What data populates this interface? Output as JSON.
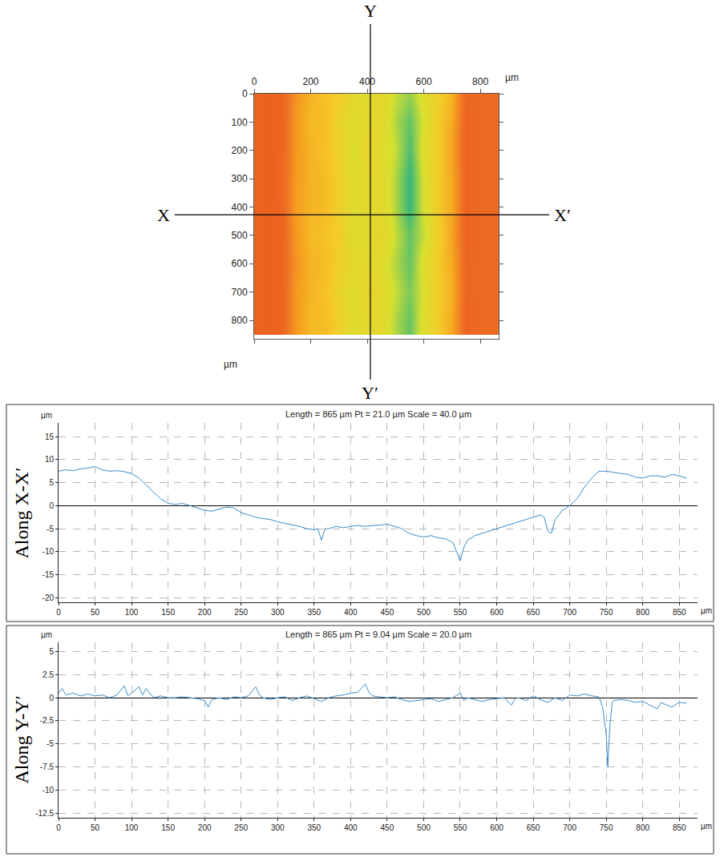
{
  "chart_data": [
    {
      "type": "heatmap",
      "xlabel": "µm",
      "ylabel": "µm",
      "x": [
        0,
        50,
        100,
        150,
        200,
        250,
        300,
        350,
        400,
        450,
        500,
        550,
        600,
        650,
        700,
        750,
        800,
        850
      ],
      "y": [
        0,
        100,
        200,
        300,
        400,
        500,
        600,
        700,
        800
      ],
      "z": [
        [
          7.5,
          8,
          7,
          1.5,
          -1,
          -2,
          -3,
          -4.5,
          -5,
          -4,
          -6,
          -7,
          -5,
          -3.5,
          -1,
          7,
          6.5,
          6.5
        ],
        [
          7.5,
          8,
          7,
          1,
          -1.5,
          -1.5,
          -4,
          -5,
          -4.5,
          -4.5,
          -6.5,
          -8,
          -5.5,
          -3,
          0,
          7.5,
          6.5,
          6.5
        ],
        [
          7.5,
          8,
          7,
          1,
          -1,
          -2,
          -3.5,
          -5.5,
          -4,
          -5,
          -6,
          -8.5,
          -5,
          -3,
          0.5,
          7.5,
          6.5,
          6.5
        ],
        [
          7.5,
          8,
          6.5,
          1,
          -1,
          -1.5,
          -3.5,
          -5,
          -4.5,
          -4.5,
          -6.5,
          -9,
          -5.5,
          -3,
          0,
          7.5,
          6.5,
          6.5
        ],
        [
          7.5,
          8,
          7,
          0.5,
          -1,
          -1.5,
          -3.5,
          -5,
          -4.5,
          -4.5,
          -6.5,
          -9,
          -5.5,
          -3,
          0,
          7.5,
          6.5,
          6.5
        ],
        [
          7.5,
          8,
          7,
          1,
          -1.5,
          -2,
          -3,
          -5,
          -5,
          -4,
          -6,
          -8,
          -6,
          -3.5,
          0.5,
          7.5,
          6.5,
          6.5
        ],
        [
          7.5,
          8,
          7,
          1.5,
          -1,
          -1.5,
          -3.5,
          -4.5,
          -4.5,
          -5,
          -6.5,
          -8,
          -5,
          -3,
          0,
          7,
          6.5,
          6.5
        ],
        [
          7.5,
          8,
          7,
          1,
          -1,
          -2,
          -4,
          -5,
          -4,
          -4.5,
          -6,
          -7.5,
          -5.5,
          -3,
          -0.5,
          7,
          6.5,
          6.5
        ],
        [
          7.5,
          8,
          7,
          1,
          -1.5,
          -1.5,
          -3.5,
          -5,
          -4.5,
          -4.5,
          -6.5,
          -8,
          -5,
          -3,
          0,
          7.5,
          6.5,
          6.5
        ]
      ],
      "zlim": [
        -12,
        9
      ],
      "xlim": [
        0,
        865
      ],
      "ylim": [
        865,
        0
      ],
      "xticks": [
        0,
        200,
        400,
        600,
        800
      ],
      "yticks": [
        0,
        100,
        200,
        300,
        400,
        500,
        600,
        700,
        800
      ],
      "sections": [
        {
          "label_start": "X",
          "label_end": "X′",
          "y": 427
        },
        {
          "label_start": "Y",
          "label_end": "Y′",
          "x": 411
        }
      ]
    },
    {
      "type": "line",
      "title": "Length = 865 µm Pt = 21.0 µm Scale = 40.0 µm",
      "side_label": "Along X-X′",
      "xlabel": "µm",
      "ylabel": "µm",
      "color": "#3a8cc8",
      "x": [
        0,
        10,
        20,
        30,
        40,
        50,
        60,
        70,
        80,
        90,
        100,
        110,
        120,
        130,
        140,
        150,
        160,
        170,
        180,
        190,
        200,
        210,
        220,
        230,
        240,
        250,
        260,
        270,
        280,
        290,
        300,
        310,
        320,
        330,
        340,
        350,
        355,
        360,
        365,
        370,
        380,
        390,
        400,
        410,
        420,
        430,
        440,
        450,
        460,
        470,
        480,
        490,
        500,
        510,
        520,
        530,
        540,
        545,
        550,
        555,
        560,
        570,
        580,
        590,
        600,
        610,
        620,
        630,
        640,
        650,
        660,
        665,
        670,
        675,
        680,
        690,
        700,
        710,
        720,
        730,
        740,
        750,
        760,
        770,
        780,
        790,
        800,
        810,
        820,
        830,
        840,
        850,
        860
      ],
      "values": [
        7.5,
        7.8,
        7.6,
        8,
        8.2,
        8.5,
        7.8,
        7.5,
        7.6,
        7.4,
        7,
        6,
        4.5,
        3,
        1.5,
        0.5,
        0.3,
        0.5,
        0,
        -0.5,
        -1,
        -1.2,
        -0.8,
        -0.3,
        -0.5,
        -1.5,
        -2,
        -2.5,
        -2.8,
        -3,
        -3.5,
        -3.8,
        -4.2,
        -4.5,
        -5,
        -5.2,
        -5,
        -7.5,
        -5,
        -5,
        -4.5,
        -4.8,
        -4.5,
        -4.3,
        -4.5,
        -4.4,
        -4.2,
        -4,
        -4.5,
        -5,
        -6,
        -6.5,
        -6.8,
        -6.5,
        -7,
        -7.2,
        -8,
        -10,
        -12,
        -9,
        -7.5,
        -6.5,
        -6,
        -5.5,
        -5,
        -4.5,
        -4,
        -3.5,
        -3,
        -2.5,
        -2,
        -2.5,
        -5.5,
        -6,
        -3,
        -1,
        0,
        1.5,
        4,
        6,
        7.5,
        7.5,
        7.2,
        7,
        6.8,
        6.2,
        6,
        6.5,
        6.5,
        6.2,
        6.8,
        6.5,
        6
      ],
      "xlim": [
        0,
        875
      ],
      "ylim": [
        -21,
        18
      ],
      "xticks": [
        0,
        50,
        100,
        150,
        200,
        250,
        300,
        350,
        400,
        450,
        500,
        550,
        600,
        650,
        700,
        750,
        800,
        850
      ],
      "yticks": [
        15,
        10,
        5,
        0,
        -5,
        -10,
        -15,
        -20
      ],
      "grid": true
    },
    {
      "type": "line",
      "title": "Length = 865 µm Pt = 9.04 µm Scale = 20.0 µm",
      "side_label": "Along Y-Y′",
      "xlabel": "µm",
      "ylabel": "µm",
      "color": "#3a8cc8",
      "x": [
        0,
        5,
        10,
        20,
        30,
        40,
        50,
        60,
        70,
        80,
        90,
        95,
        100,
        110,
        115,
        120,
        130,
        140,
        150,
        160,
        170,
        180,
        190,
        200,
        205,
        210,
        220,
        230,
        240,
        250,
        260,
        270,
        275,
        280,
        290,
        300,
        310,
        320,
        330,
        340,
        350,
        360,
        370,
        380,
        390,
        400,
        410,
        420,
        425,
        430,
        440,
        450,
        460,
        470,
        480,
        490,
        500,
        510,
        520,
        530,
        540,
        550,
        555,
        560,
        570,
        580,
        590,
        600,
        610,
        620,
        625,
        630,
        640,
        650,
        660,
        670,
        680,
        690,
        700,
        710,
        720,
        730,
        740,
        745,
        750,
        752,
        755,
        758,
        760,
        770,
        780,
        790,
        800,
        810,
        820,
        825,
        830,
        840,
        850,
        860
      ],
      "values": [
        0.5,
        1,
        0.3,
        0.5,
        0.2,
        0.4,
        0.2,
        0.3,
        0,
        0.3,
        1.3,
        0.2,
        0.5,
        1.2,
        0.3,
        1,
        0,
        0.2,
        0,
        0,
        0.1,
        0,
        -0.1,
        -0.3,
        -1,
        -0.2,
        0,
        -0.2,
        0.1,
        0,
        0.2,
        1.2,
        0.3,
        0,
        -0.2,
        0,
        0.1,
        -0.3,
        0,
        0.2,
        -0.1,
        -0.4,
        0,
        0.2,
        0.3,
        0.5,
        0.6,
        1.5,
        0.6,
        0.2,
        0.1,
        0,
        0.1,
        -0.2,
        -0.4,
        -0.3,
        -0.2,
        -0.1,
        -0.4,
        -0.2,
        0,
        0.5,
        -0.3,
        0,
        -0.2,
        -0.4,
        -0.2,
        -0.1,
        0,
        -0.8,
        -0.1,
        0,
        -0.3,
        0.2,
        -0.2,
        -0.5,
        0,
        -0.3,
        0.3,
        0.2,
        0.4,
        0.2,
        0.1,
        -1,
        -4,
        -7.5,
        -3,
        -0.5,
        -0.3,
        -0.2,
        -0.3,
        -0.5,
        -0.4,
        -0.8,
        -1.2,
        -0.5,
        -0.7,
        -1,
        -0.5,
        -0.6
      ],
      "xlim": [
        0,
        875
      ],
      "ylim": [
        -13,
        6
      ],
      "xticks": [
        0,
        50,
        100,
        150,
        200,
        250,
        300,
        350,
        400,
        450,
        500,
        550,
        600,
        650,
        700,
        750,
        800,
        850
      ],
      "yticks": [
        5,
        2.5,
        0,
        -2.5,
        -5,
        -7.5,
        -10,
        -12.5
      ],
      "grid": true
    }
  ]
}
